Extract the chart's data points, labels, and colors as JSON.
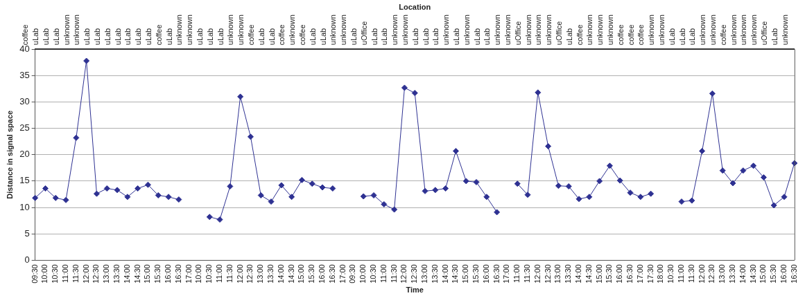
{
  "chart_data": {
    "type": "line",
    "xlabel": "Time",
    "ylabel": "Distance in signal space",
    "x2label": "Location",
    "categories": [
      "09:30",
      "10:00",
      "10:30",
      "11:00",
      "11:30",
      "12:00",
      "12:30",
      "13:00",
      "13:30",
      "14:00",
      "14:30",
      "15:00",
      "15:30",
      "16:00",
      "16:30",
      "17:00",
      "10:00",
      "10:30",
      "11:00",
      "11:30",
      "12:00",
      "12:30",
      "13:00",
      "13:30",
      "14:00",
      "14:30",
      "15:00",
      "15:30",
      "16:00",
      "16:30",
      "17:00",
      "09:30",
      "10:00",
      "10:30",
      "11:00",
      "11:30",
      "12:00",
      "12:30",
      "13:00",
      "13:30",
      "14:00",
      "14:30",
      "15:00",
      "15:30",
      "16:00",
      "16:30",
      "17:00",
      "11:00",
      "11:30",
      "12:00",
      "12:30",
      "13:00",
      "13:30",
      "14:00",
      "14:30",
      "15:00",
      "15:30",
      "16:00",
      "16:30",
      "17:00",
      "17:30",
      "18:00",
      "10:30",
      "11:00",
      "11:30",
      "12:00",
      "12:30",
      "13:00",
      "13:30",
      "14:00",
      "14:30",
      "15:00",
      "15:30",
      "16:00",
      "16:30"
    ],
    "annotations": [
      "coffee",
      "uLab",
      "uLab",
      "uLab",
      "unknown",
      "unknown",
      "uLab",
      "uLab",
      "uLab",
      "uLab",
      "uLab",
      "uLab",
      "uLab",
      "coffee",
      "uLab",
      "unknown",
      "unknown",
      "uLab",
      "uLab",
      "uLab",
      "unknown",
      "unknown",
      "coffee",
      "uLab",
      "uLab",
      "coffee",
      "unknown",
      "coffee",
      "uLab",
      "uLab",
      "unknown",
      "unknown",
      "uLab",
      "uOffice",
      "uLab",
      "uLab",
      "unknown",
      "unknown",
      "uLab",
      "uLab",
      "uLab",
      "unknown",
      "uLab",
      "unknown",
      "uLab",
      "uLab",
      "unknown",
      "unknown",
      "uOffice",
      "unknown",
      "unknown",
      "unknown",
      "uOffice",
      "uLab",
      "coffee",
      "unknown",
      "unknown",
      "unknown",
      "coffee",
      "coffee",
      "coffee",
      "unknown",
      "unknown",
      "uLab",
      "uLab",
      "uLab",
      "unknown",
      "unknown",
      "coffee",
      "unknown",
      "unknown",
      "unknown",
      "uOffice",
      "uLab",
      "unknown"
    ],
    "series": [
      {
        "color": "#2e3192",
        "values": [
          11.8,
          13.6,
          11.8,
          11.4,
          23.2,
          37.8,
          12.6,
          13.6,
          13.3,
          12.0,
          13.6,
          14.3,
          12.3,
          12.0,
          11.5,
          null,
          null,
          8.2,
          7.7,
          14.0,
          31.0,
          23.4,
          12.3,
          11.1,
          14.2,
          12.0,
          15.2,
          14.5,
          13.8,
          13.6,
          null,
          null,
          12.1,
          12.3,
          10.6,
          9.6,
          32.7,
          31.7,
          13.1,
          13.3,
          13.6,
          20.7,
          15.0,
          14.8,
          12.0,
          9.1,
          null,
          14.5,
          12.4,
          31.8,
          21.6,
          14.1,
          14.0,
          11.6,
          12.0,
          15.0,
          17.9,
          15.1,
          12.8,
          12.0,
          12.6,
          null,
          null,
          11.1,
          11.3,
          20.7,
          31.6,
          17.0,
          14.6,
          17.0,
          17.9,
          15.7,
          10.4,
          12.0,
          18.4
        ]
      }
    ],
    "ylim": [
      0,
      40
    ],
    "yticks": [
      0,
      5,
      10,
      15,
      20,
      25,
      30,
      35,
      40
    ],
    "grid": "y",
    "legend": false,
    "marker": "diamond",
    "line_style": "solid"
  }
}
